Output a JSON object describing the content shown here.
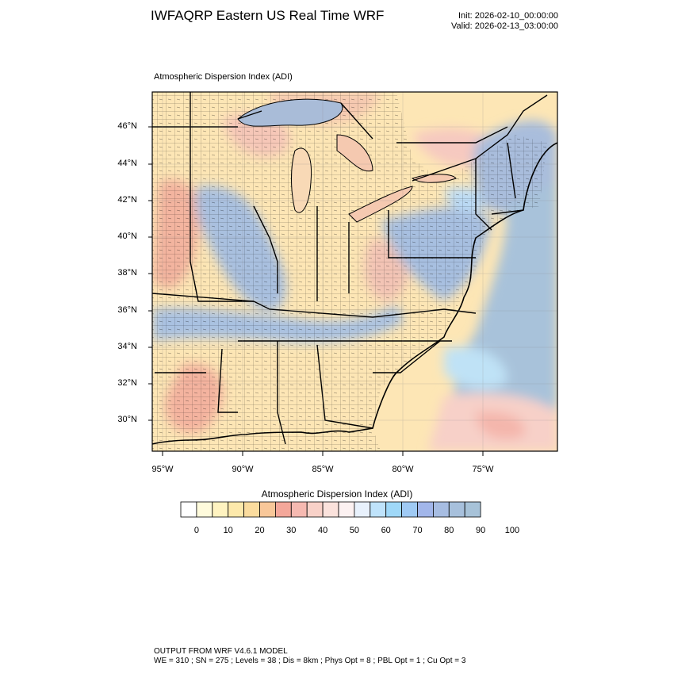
{
  "header": {
    "title": "IWFAQRP Eastern US Real Time WRF",
    "init": "Init: 2026-02-10_00:00:00",
    "valid": "Valid: 2026-02-13_03:00:00"
  },
  "map": {
    "subtitle": "Atmospheric Dispersion Index   (ADI)",
    "lat_labels": [
      "46°N",
      "44°N",
      "42°N",
      "40°N",
      "38°N",
      "36°N",
      "34°N",
      "32°N",
      "30°N"
    ],
    "lon_labels": [
      "95°W",
      "90°W",
      "85°W",
      "80°W",
      "75°W"
    ]
  },
  "colorbar": {
    "title": "Atmospheric Dispersion Index  (ADI)",
    "labels": [
      "0",
      "10",
      "20",
      "30",
      "40",
      "50",
      "60",
      "70",
      "80",
      "90",
      "100"
    ],
    "colors": [
      "#ffffff",
      "#fffbdc",
      "#fff3c0",
      "#fde9ab",
      "#fbdc9e",
      "#f8c799",
      "#f4a79a",
      "#f6b9b1",
      "#f8d1c8",
      "#fbe2dc",
      "#fcf1f1",
      "#e8f1fc",
      "#bfe3fb",
      "#9fd8f8",
      "#9fcaf4",
      "#a2b6ea",
      "#a7bde2",
      "#a7c0dc",
      "#a7c2d8"
    ]
  },
  "footer": {
    "line1": "OUTPUT FROM WRF V4.6.1 MODEL",
    "line2": "WE = 310 ; SN = 275 ; Levels = 38 ; Dis = 8km ; Phys Opt = 8 ; PBL Opt = 1 ; Cu Opt = 3"
  }
}
